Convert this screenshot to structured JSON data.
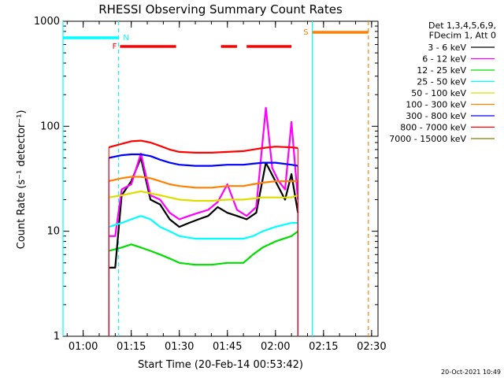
{
  "chart_data": {
    "type": "line",
    "title": "RHESSI Observing Summary Count Rates",
    "xlabel": "Start Time (20-Feb-14 00:53:42)",
    "ylabel": "Count Rate (s⁻¹ detector⁻¹)",
    "y_scale": "log",
    "ylim": [
      1,
      1000
    ],
    "xlim": [
      "00:53:42",
      "02:32:00"
    ],
    "x_ticks": [
      "01:00",
      "01:15",
      "01:30",
      "01:45",
      "02:00",
      "02:15",
      "02:30"
    ],
    "y_ticks": [
      "1",
      "10",
      "100",
      "1000"
    ],
    "grid": false,
    "legend_header": [
      "Det 1,3,4,5,6,9,",
      "FDecim 1, Att 0"
    ],
    "legend_placement": "right",
    "series": [
      {
        "name": "3 - 6 keV",
        "color": "#000000",
        "x": [
          "01:08",
          "01:10",
          "01:12",
          "01:15",
          "01:18",
          "01:21",
          "01:24",
          "01:27",
          "01:30",
          "01:33",
          "01:36",
          "01:39",
          "01:42",
          "01:45",
          "01:48",
          "01:51",
          "01:54",
          "01:57",
          "02:00",
          "02:03",
          "02:05",
          "02:07"
        ],
        "values": [
          4.5,
          4.5,
          22,
          30,
          50,
          20,
          18,
          13,
          11,
          12,
          13,
          14,
          17,
          15,
          14,
          13,
          15,
          45,
          30,
          20,
          35,
          15
        ]
      },
      {
        "name": "6 - 12 keV",
        "color": "#ff00ff",
        "x": [
          "01:08",
          "01:10",
          "01:12",
          "01:15",
          "01:18",
          "01:21",
          "01:24",
          "01:27",
          "01:30",
          "01:33",
          "01:36",
          "01:39",
          "01:42",
          "01:45",
          "01:48",
          "01:51",
          "01:54",
          "01:57",
          "01:59",
          "02:01",
          "02:03",
          "02:05",
          "02:07"
        ],
        "values": [
          9,
          9,
          25,
          28,
          55,
          22,
          20,
          15,
          13,
          14,
          15,
          16,
          19,
          28,
          16,
          14,
          17,
          150,
          40,
          30,
          25,
          110,
          20
        ]
      },
      {
        "name": "12 - 25 keV",
        "color": "#00dd00",
        "x": [
          "01:08",
          "01:12",
          "01:15",
          "01:18",
          "01:21",
          "01:24",
          "01:27",
          "01:30",
          "01:35",
          "01:40",
          "01:45",
          "01:50",
          "01:53",
          "01:56",
          "02:00",
          "02:05",
          "02:07"
        ],
        "values": [
          6.5,
          7,
          7.5,
          7,
          6.5,
          6,
          5.5,
          5,
          4.8,
          4.8,
          5,
          5,
          6,
          7,
          8,
          9,
          10
        ]
      },
      {
        "name": "25 - 50 keV",
        "color": "#00ffff",
        "x": [
          "01:08",
          "01:12",
          "01:15",
          "01:18",
          "01:21",
          "01:24",
          "01:27",
          "01:30",
          "01:35",
          "01:40",
          "01:45",
          "01:50",
          "01:53",
          "01:56",
          "02:00",
          "02:05",
          "02:07"
        ],
        "values": [
          11,
          12,
          13,
          14,
          13,
          11,
          10,
          9,
          8.5,
          8.5,
          8.5,
          8.5,
          9,
          10,
          11,
          12,
          12
        ]
      },
      {
        "name": "50 - 100 keV",
        "color": "#dddd00",
        "x": [
          "01:08",
          "01:12",
          "01:15",
          "01:18",
          "01:21",
          "01:24",
          "01:27",
          "01:30",
          "01:35",
          "01:40",
          "01:45",
          "01:50",
          "01:53",
          "01:56",
          "02:00",
          "02:05",
          "02:07"
        ],
        "values": [
          21,
          22,
          23,
          24,
          23,
          22,
          21,
          20,
          19.5,
          19.5,
          20,
          20,
          20.5,
          21,
          21,
          21,
          22
        ]
      },
      {
        "name": "100 - 300 keV",
        "color": "#ff8000",
        "x": [
          "01:08",
          "01:12",
          "01:15",
          "01:18",
          "01:21",
          "01:24",
          "01:27",
          "01:30",
          "01:35",
          "01:40",
          "01:45",
          "01:50",
          "01:53",
          "01:56",
          "02:00",
          "02:05",
          "02:07"
        ],
        "values": [
          30,
          32,
          33,
          33,
          32,
          30,
          28,
          27,
          26,
          26,
          27,
          27,
          28,
          29,
          30,
          30,
          30
        ]
      },
      {
        "name": "300 - 800 keV",
        "color": "#0000ff",
        "x": [
          "01:08",
          "01:12",
          "01:15",
          "01:18",
          "01:21",
          "01:24",
          "01:27",
          "01:30",
          "01:35",
          "01:40",
          "01:45",
          "01:50",
          "01:53",
          "01:56",
          "02:00",
          "02:05",
          "02:07"
        ],
        "values": [
          50,
          53,
          54,
          54,
          52,
          48,
          45,
          43,
          42,
          42,
          43,
          43,
          44,
          45,
          45,
          43,
          42
        ]
      },
      {
        "name": "800 - 7000 keV",
        "color": "#ff0000",
        "x": [
          "01:08",
          "01:12",
          "01:15",
          "01:18",
          "01:21",
          "01:24",
          "01:27",
          "01:30",
          "01:35",
          "01:40",
          "01:45",
          "01:50",
          "01:53",
          "01:56",
          "02:00",
          "02:05",
          "02:07"
        ],
        "values": [
          63,
          68,
          72,
          73,
          70,
          65,
          60,
          57,
          56,
          56,
          57,
          58,
          60,
          62,
          64,
          63,
          62
        ]
      },
      {
        "name": "7000 - 15000 keV",
        "color": "#808000",
        "x": [],
        "values": []
      }
    ],
    "flags": [
      {
        "label": "F",
        "color": "#ff0000",
        "intervals": [
          [
            "01:11:30",
            "01:29:00"
          ],
          [
            "01:43:00",
            "01:48:00"
          ],
          [
            "01:51:00",
            "02:05:00"
          ]
        ]
      },
      {
        "label": "N",
        "color": "#00ffff",
        "intervals": [
          [
            "00:53:42",
            "01:11:00"
          ]
        ]
      },
      {
        "label": "S",
        "color": "#ff8000",
        "intervals": [
          [
            "02:11:30",
            "02:29:00"
          ]
        ]
      }
    ],
    "night_boundaries": [
      {
        "time": "00:53:42",
        "style": "solid",
        "color": "#00ffff"
      },
      {
        "time": "01:11:00",
        "style": "dashed",
        "color": "#00ffff"
      },
      {
        "time": "02:11:30",
        "style": "solid",
        "color": "#00ffff"
      },
      {
        "time": "02:29:00",
        "style": "dashed",
        "color": "#ff8000"
      }
    ],
    "footer_timestamp": "20-Oct-2021 10:49"
  }
}
